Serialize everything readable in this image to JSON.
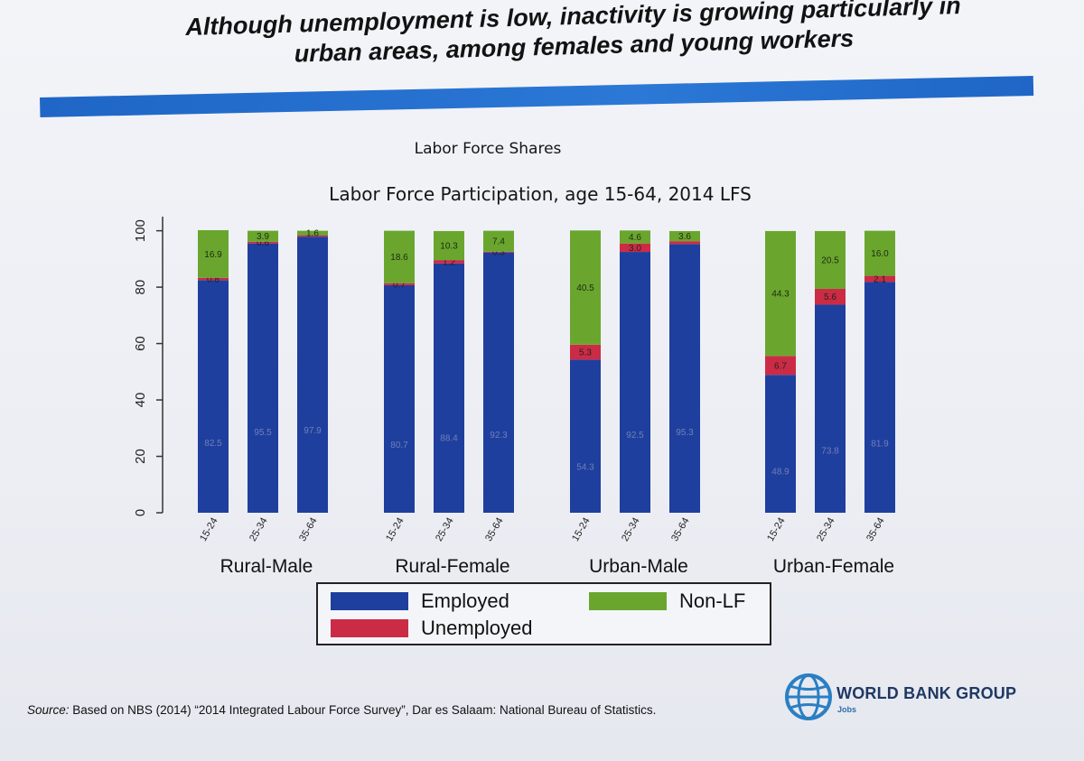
{
  "slide": {
    "headline": "Although unemployment is low, inactivity is growing particularly in\nurban areas, among females and young workers",
    "chart_heading": "Labor Force Shares",
    "source_label": "Source:",
    "source_text": " Based on NBS (2014) “2014 Integrated Labour Force Survey”, Dar es Salaam: National Bureau of Statistics.",
    "logo_name": "WORLD BANK GROUP",
    "logo_sub": "Jobs",
    "band_color": "#2b78d6"
  },
  "chart_data": {
    "type": "bar",
    "stacked": true,
    "title": "Labor Force Participation, age 15-64, 2014 LFS",
    "groups": [
      "Rural-Male",
      "Rural-Female",
      "Urban-Male",
      "Urban-Female"
    ],
    "categories": [
      "15-24",
      "25-34",
      "35-64",
      "15-24",
      "25-34",
      "35-64",
      "15-24",
      "25-34",
      "35-64",
      "15-24",
      "25-34",
      "35-64"
    ],
    "series": [
      {
        "name": "Employed",
        "color": "#1f3f9e",
        "values": [
          82.5,
          95.5,
          97.9,
          80.7,
          88.4,
          92.3,
          54.3,
          92.5,
          95.3,
          48.9,
          73.8,
          81.9
        ],
        "labels": [
          "82.5",
          "95.5",
          "97.9",
          "80.7",
          "88.4",
          "92.3",
          "54.3",
          "92.5",
          "95.3",
          "48.9",
          "73.8",
          "81.9"
        ]
      },
      {
        "name": "Unemployed",
        "color": "#cc2b45",
        "values": [
          0.8,
          0.6,
          0.5,
          0.7,
          1.2,
          0.3,
          5.3,
          3.0,
          1.0,
          6.7,
          5.6,
          2.1
        ],
        "labels": [
          "0.8",
          "0.6",
          "",
          "0.7",
          "1.2",
          "0.3",
          "5.3",
          "3.0",
          "",
          "6.7",
          "5.6",
          "2.1"
        ]
      },
      {
        "name": "Non-LF",
        "color": "#6aa62e",
        "values": [
          16.9,
          3.9,
          1.6,
          18.6,
          10.3,
          7.4,
          40.5,
          4.6,
          3.6,
          44.3,
          20.5,
          16.0
        ],
        "labels": [
          "16.9",
          "3.9",
          "1.6",
          "18.6",
          "10.3",
          "7.4",
          "40.5",
          "4.6",
          "3.6",
          "44.3",
          "20.5",
          "16.0"
        ]
      }
    ],
    "yticks": [
      0,
      20,
      40,
      60,
      80,
      100
    ],
    "ylim": [
      0,
      105
    ],
    "legend": "bottom",
    "grid": false
  }
}
